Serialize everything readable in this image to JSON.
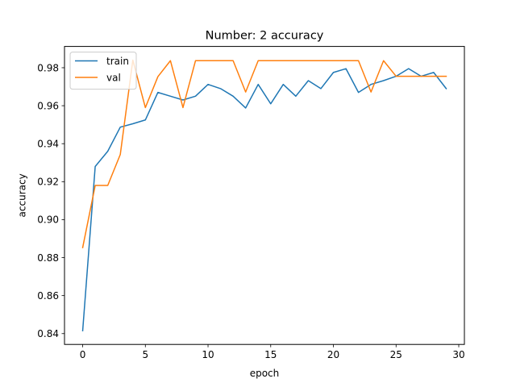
{
  "chart_data": {
    "type": "line",
    "title": "Number: 2 accuracy",
    "xlabel": "epoch",
    "ylabel": "accuracy",
    "xlim": [
      -1.45,
      30.45
    ],
    "ylim": [
      0.8343,
      0.9912
    ],
    "x_ticks": [
      0,
      5,
      10,
      15,
      20,
      25,
      30
    ],
    "y_ticks": [
      0.84,
      0.86,
      0.88,
      0.9,
      0.92,
      0.94,
      0.96,
      0.98
    ],
    "y_tick_labels": [
      "0.84",
      "0.86",
      "0.88",
      "0.90",
      "0.92",
      "0.94",
      "0.96",
      "0.98"
    ],
    "grid": false,
    "legend_position": "upper left",
    "x": [
      0,
      1,
      2,
      3,
      4,
      5,
      6,
      7,
      8,
      9,
      10,
      11,
      12,
      13,
      14,
      15,
      16,
      17,
      18,
      19,
      20,
      21,
      22,
      23,
      24,
      25,
      26,
      27,
      28,
      29
    ],
    "series": [
      {
        "name": "train",
        "color": "#1f77b4",
        "values": [
          0.8415,
          0.928,
          0.936,
          0.9487,
          0.9505,
          0.9525,
          0.967,
          0.965,
          0.963,
          0.965,
          0.9712,
          0.969,
          0.965,
          0.9588,
          0.9712,
          0.961,
          0.9712,
          0.965,
          0.9732,
          0.969,
          0.9775,
          0.9795,
          0.967,
          0.9712,
          0.9732,
          0.9755,
          0.9795,
          0.9755,
          0.9775,
          0.969
        ]
      },
      {
        "name": "val",
        "color": "#ff7f0e",
        "values": [
          0.8853,
          0.918,
          0.918,
          0.9343,
          0.984,
          0.959,
          0.9753,
          0.9837,
          0.959,
          0.9837,
          0.9837,
          0.9837,
          0.9837,
          0.9672,
          0.9837,
          0.9837,
          0.9837,
          0.9837,
          0.9837,
          0.9837,
          0.9837,
          0.9837,
          0.9837,
          0.9672,
          0.9837,
          0.9755,
          0.9755,
          0.9755,
          0.9755,
          0.9755
        ]
      }
    ]
  }
}
